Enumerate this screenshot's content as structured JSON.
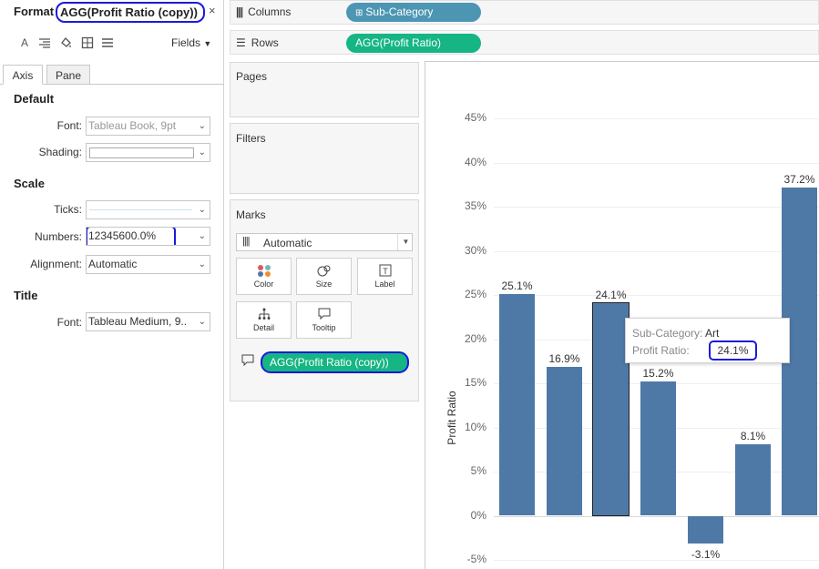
{
  "format": {
    "title_prefix": "Format",
    "field_name": "AGG(Profit Ratio (copy))",
    "close": "×",
    "fields_label": "Fields",
    "tabs": [
      "Axis",
      "Pane"
    ],
    "default_heading": "Default",
    "font_label": "Font:",
    "font_value": "Tableau Book, 9pt",
    "shading_label": "Shading:",
    "scale_heading": "Scale",
    "ticks_label": "Ticks:",
    "numbers_label": "Numbers:",
    "numbers_value": "12345600.0%",
    "alignment_label": "Alignment:",
    "alignment_value": "Automatic",
    "title_heading": "Title",
    "title_font_label": "Font:",
    "title_font_value": "Tableau Medium, 9.."
  },
  "shelves": {
    "columns_label": "Columns",
    "columns_pill": "Sub-Category",
    "rows_label": "Rows",
    "rows_pill": "AGG(Profit Ratio)"
  },
  "cards": {
    "pages": "Pages",
    "filters": "Filters",
    "marks": "Marks",
    "mark_type": "Automatic",
    "buttons": [
      "Color",
      "Size",
      "Label",
      "Detail",
      "Tooltip"
    ],
    "tooltip_pill": "AGG(Profit Ratio (copy))"
  },
  "chart_data": {
    "type": "bar",
    "ylabel": "Profit Ratio",
    "y_ticks": [
      "45%",
      "40%",
      "35%",
      "30%",
      "25%",
      "20%",
      "15%",
      "10%",
      "5%",
      "0%",
      "-5%"
    ],
    "ylim": [
      -5,
      45
    ],
    "categories": [
      "",
      "",
      "Art",
      "",
      "",
      "",
      ""
    ],
    "values": [
      25.1,
      16.9,
      24.1,
      15.2,
      -3.1,
      8.1,
      37.2
    ],
    "labels": [
      "25.1%",
      "16.9%",
      "24.1%",
      "15.2%",
      "-3.1%",
      "8.1%",
      "37.2%"
    ],
    "highlighted_index": 2,
    "bar_color": "#4e79a7"
  },
  "tooltip": {
    "cat_label": "Sub-Category:",
    "cat_value": "Art",
    "ratio_label": "Profit Ratio:",
    "ratio_value": "24.1%"
  },
  "colors": {
    "highlight_outline": "#1a1adb",
    "blue_pill": "#4d96b3",
    "green_pill": "#15b584"
  }
}
